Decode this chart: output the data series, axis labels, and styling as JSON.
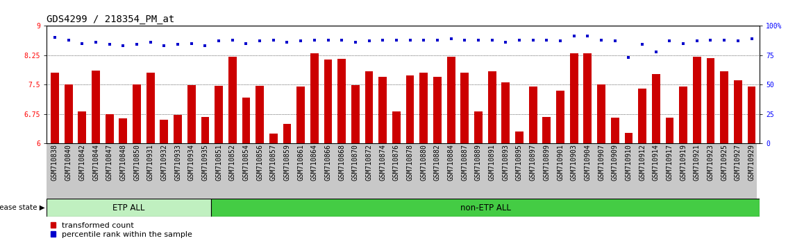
{
  "title": "GDS4299 / 218354_PM_at",
  "categories": [
    "GSM710838",
    "GSM710840",
    "GSM710842",
    "GSM710844",
    "GSM710847",
    "GSM710848",
    "GSM710850",
    "GSM710931",
    "GSM710932",
    "GSM710933",
    "GSM710934",
    "GSM710935",
    "GSM710851",
    "GSM710852",
    "GSM710854",
    "GSM710856",
    "GSM710857",
    "GSM710859",
    "GSM710861",
    "GSM710864",
    "GSM710866",
    "GSM710868",
    "GSM710870",
    "GSM710872",
    "GSM710874",
    "GSM710876",
    "GSM710878",
    "GSM710880",
    "GSM710882",
    "GSM710884",
    "GSM710887",
    "GSM710889",
    "GSM710891",
    "GSM710893",
    "GSM710895",
    "GSM710897",
    "GSM710899",
    "GSM710901",
    "GSM710903",
    "GSM710904",
    "GSM710907",
    "GSM710909",
    "GSM710910",
    "GSM710912",
    "GSM710914",
    "GSM710917",
    "GSM710919",
    "GSM710921",
    "GSM710923",
    "GSM710925",
    "GSM710927",
    "GSM710929"
  ],
  "bar_values": [
    7.8,
    7.5,
    6.82,
    7.85,
    6.75,
    6.63,
    7.5,
    7.8,
    6.6,
    6.73,
    7.48,
    6.68,
    7.47,
    8.2,
    7.16,
    7.47,
    6.25,
    6.5,
    7.45,
    8.3,
    8.14,
    8.16,
    7.48,
    7.84,
    7.7,
    6.82,
    7.74,
    7.8,
    7.7,
    8.2,
    7.8,
    6.82,
    7.84,
    7.55,
    6.3,
    7.45,
    6.67,
    7.35,
    8.3,
    8.3,
    7.5,
    6.65,
    6.27,
    7.4,
    7.76,
    6.65,
    7.45,
    8.2,
    8.18,
    7.84,
    7.6,
    7.45
  ],
  "dot_pct": [
    90,
    88,
    85,
    86,
    84,
    83,
    84,
    86,
    83,
    84,
    85,
    83,
    87,
    88,
    85,
    87,
    88,
    86,
    87,
    88,
    88,
    88,
    86,
    87,
    88,
    88,
    88,
    88,
    88,
    89,
    88,
    88,
    88,
    86,
    88,
    88,
    88,
    87,
    91,
    91,
    88,
    87,
    73,
    84,
    78,
    87,
    85,
    87,
    88,
    88,
    87,
    89
  ],
  "etp_count": 12,
  "bar_color": "#cc0000",
  "dot_color": "#0000cc",
  "etp_fill": "#c0f0c0",
  "non_etp_fill": "#44cc44",
  "lmin": 6.0,
  "lmax": 9.0,
  "rmin": 0,
  "rmax": 100,
  "left_yticks": [
    6.0,
    6.75,
    7.5,
    8.25,
    9.0
  ],
  "left_yticklabels": [
    "6",
    "6.75",
    "7.5",
    "8.25",
    "9"
  ],
  "right_yticks": [
    0,
    25,
    50,
    75,
    100
  ],
  "right_yticklabels": [
    "0",
    "25",
    "50",
    "75",
    "100%"
  ],
  "grid_values": [
    6.75,
    7.5,
    8.25
  ],
  "title_fontsize": 10,
  "tick_fontsize": 7,
  "bar_width": 0.6
}
